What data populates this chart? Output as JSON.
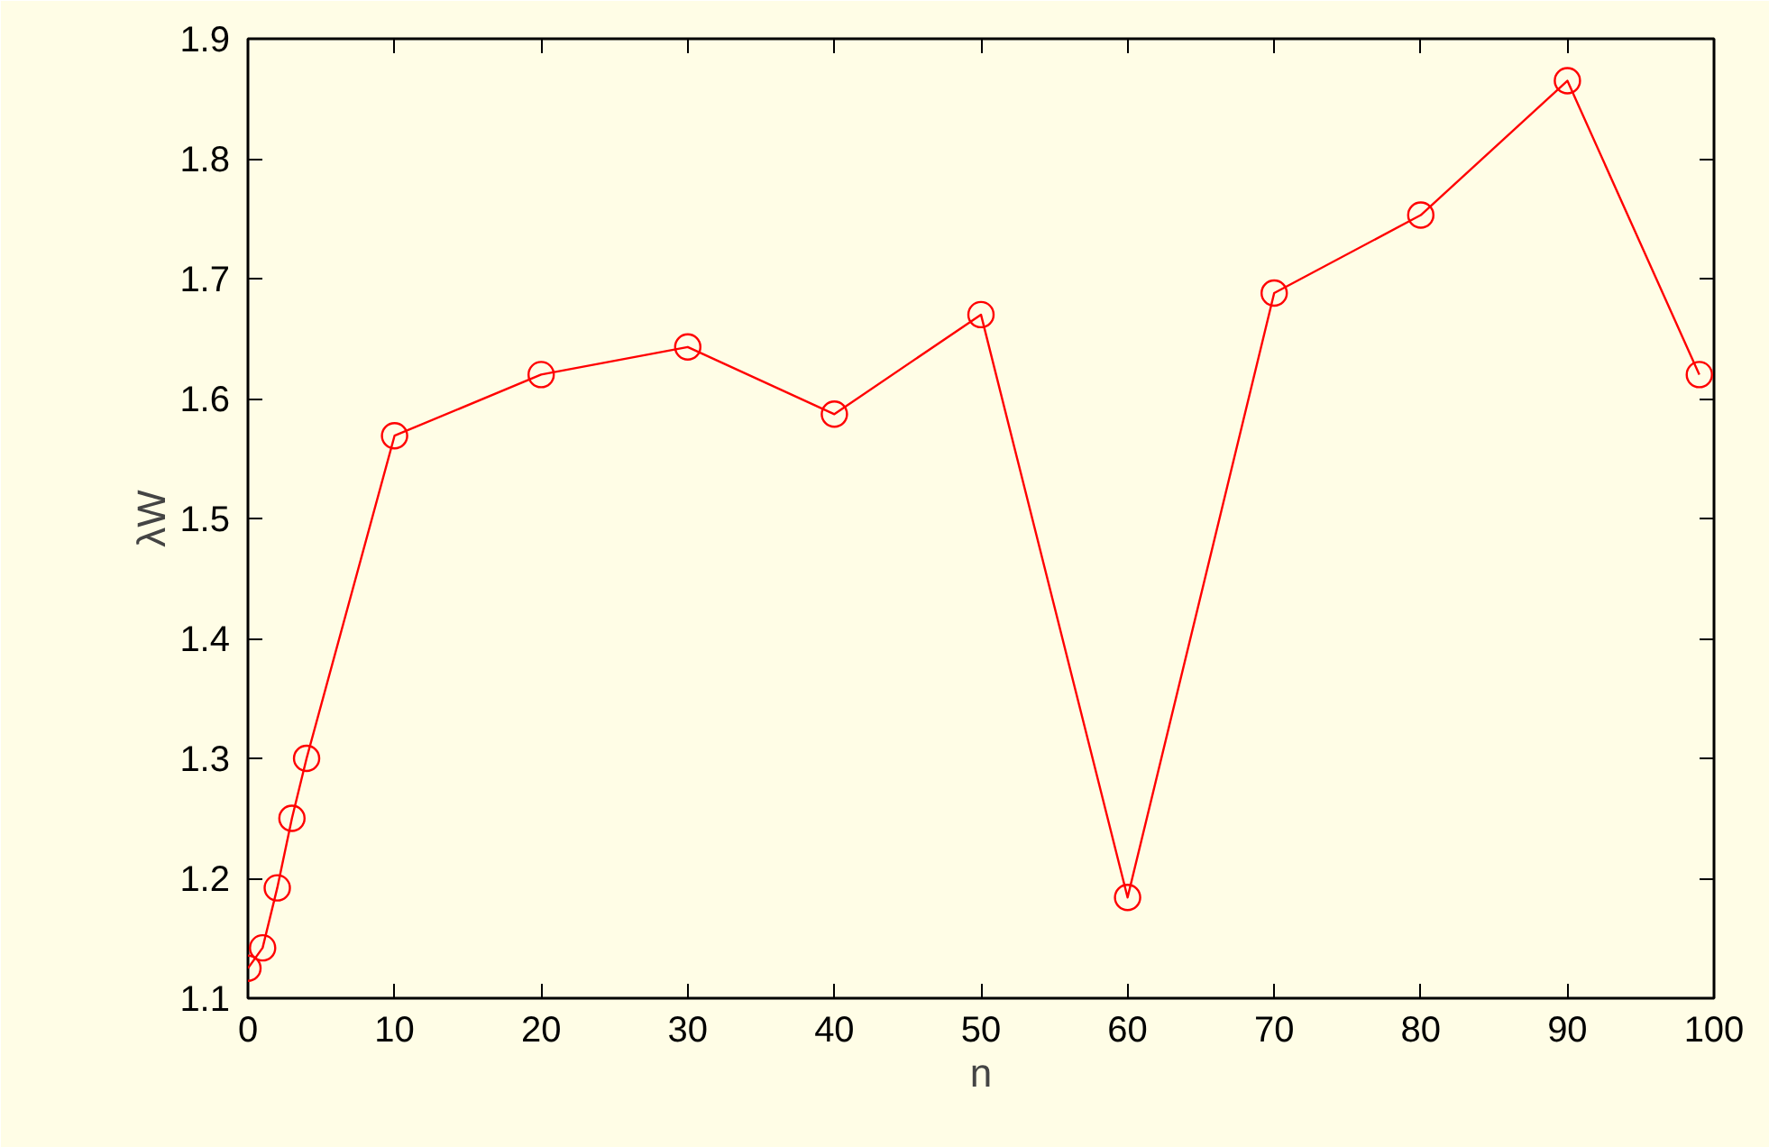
{
  "chart_data": {
    "type": "line",
    "xlabel": "n",
    "ylabel": "λW",
    "x": [
      0,
      1,
      2,
      3,
      4,
      10,
      20,
      30,
      40,
      50,
      60,
      70,
      80,
      90,
      99
    ],
    "series": [
      {
        "color": "#ff0000",
        "values": [
          1.125,
          1.142,
          1.192,
          1.25,
          1.3,
          1.569,
          1.62,
          1.643,
          1.587,
          1.67,
          1.184,
          1.688,
          1.753,
          1.865,
          1.62
        ]
      }
    ],
    "xlim": [
      0,
      100
    ],
    "xticks": [
      0,
      10,
      20,
      30,
      40,
      50,
      60,
      70,
      80,
      90,
      100
    ],
    "ylim": [
      1.1,
      1.9
    ],
    "yticks": [
      1.1,
      1.2,
      1.3,
      1.4,
      1.5,
      1.6,
      1.7,
      1.8,
      1.9
    ],
    "marker": "circle",
    "line_style": "solid",
    "grid": false
  }
}
